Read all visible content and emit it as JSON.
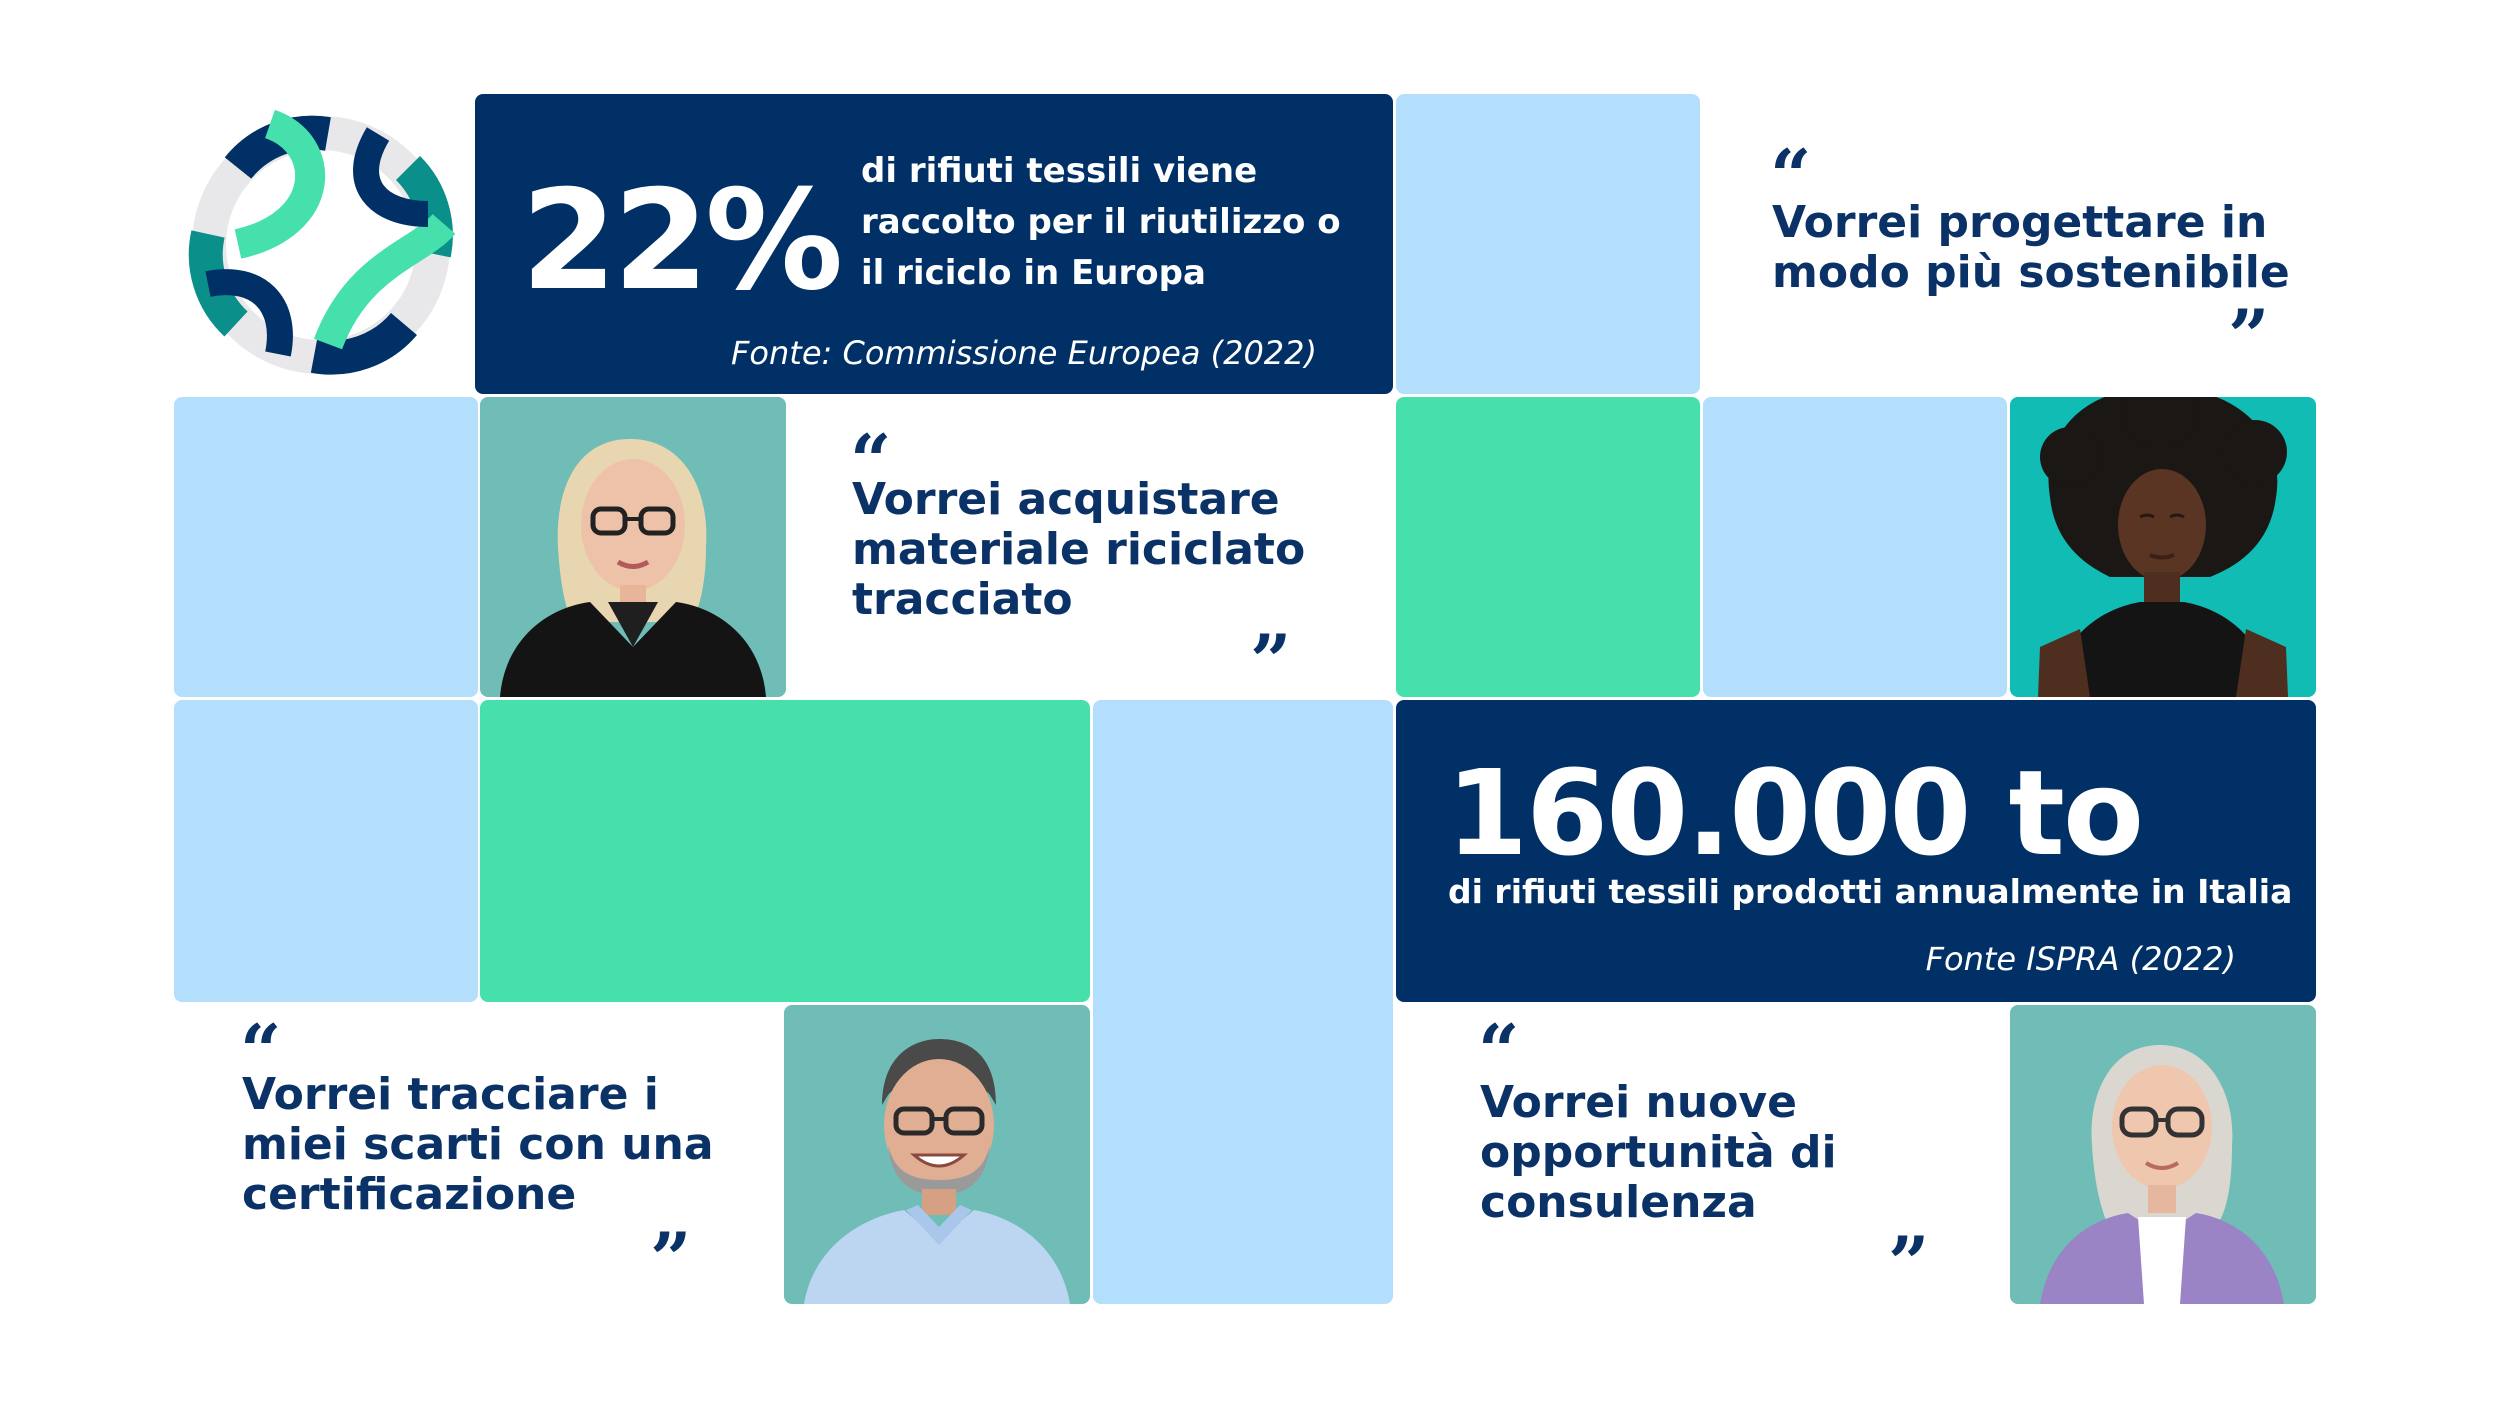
{
  "colors": {
    "navy": "#003065",
    "light_blue": "#b3defc",
    "green": "#46e0ac",
    "teal": "#6fbdb6",
    "turquoise": "#10bcb4",
    "text_navy": "#0b3266"
  },
  "stat1": {
    "value": "22%",
    "desc_lines": [
      "di rifiuti tessili viene",
      "raccolto per il riutilizzo o",
      "il riciclo in Europa"
    ],
    "source": "Fonte: Commissione Europea (2022)"
  },
  "stat2": {
    "value": "160.000 to",
    "desc": "di rifiuti tessili prodotti annualmente in Italia",
    "source": "Fonte ISPRA (2022)"
  },
  "quotes": {
    "q1": {
      "open": "“",
      "close": "”",
      "lines": [
        "Vorrei progettare in",
        "modo più sostenibile"
      ]
    },
    "q2": {
      "open": "“",
      "close": "”",
      "lines": [
        "Vorrei acquistare",
        "materiale riciclato",
        "tracciato"
      ]
    },
    "q3": {
      "open": "“",
      "close": "”",
      "lines": [
        "Vorrei tracciare i",
        "miei scarti con una",
        "certificazione"
      ]
    },
    "q4": {
      "open": "“",
      "close": "”",
      "lines": [
        "Vorrei nuove",
        "opportunità di",
        "consulenza"
      ]
    }
  },
  "icons": {
    "logo": "circular-knot-logo",
    "photos": [
      "woman-glasses-blonde-photo",
      "woman-curly-hair-photo",
      "man-glasses-smiling-photo",
      "woman-gray-hair-glasses-photo"
    ]
  }
}
